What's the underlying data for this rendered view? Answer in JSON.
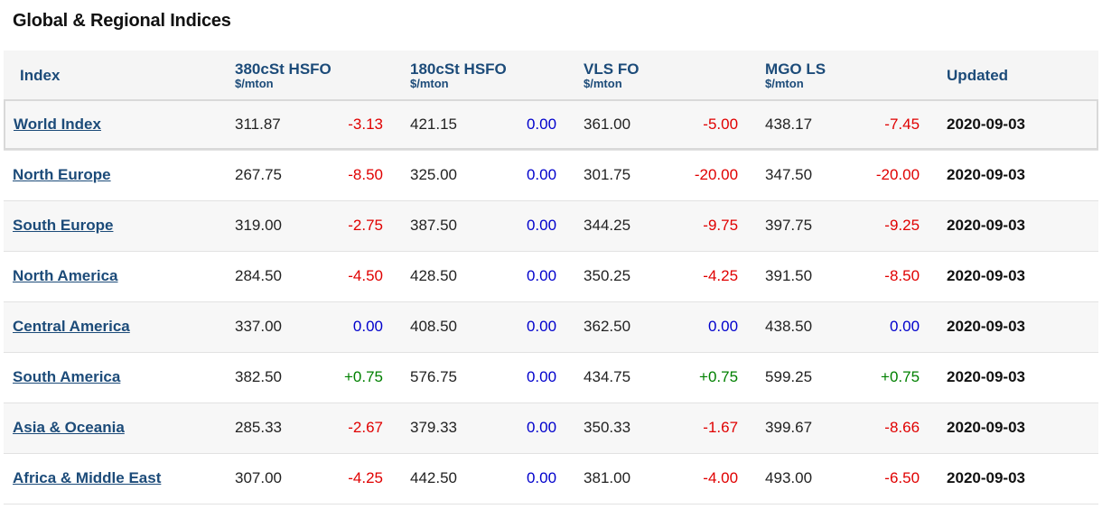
{
  "title": "Global & Regional Indices",
  "columns": {
    "index": "Index",
    "c1": {
      "name": "380cSt HSFO",
      "unit": "$/mton"
    },
    "c2": {
      "name": "180cSt HSFO",
      "unit": "$/mton"
    },
    "c3": {
      "name": "VLS FO",
      "unit": "$/mton"
    },
    "c4": {
      "name": "MGO LS",
      "unit": "$/mton"
    },
    "updated": "Updated"
  },
  "colors": {
    "negative": "#e00000",
    "zero": "#0000cc",
    "positive": "#008000",
    "header": "#1c4b79"
  },
  "rows": [
    {
      "name": "World Index",
      "p1": "311.87",
      "c1": "-3.13",
      "p2": "421.15",
      "c2": "0.00",
      "p3": "361.00",
      "c3": "-5.00",
      "p4": "438.17",
      "c4": "-7.45",
      "updated": "2020-09-03"
    },
    {
      "name": "North Europe",
      "p1": "267.75",
      "c1": "-8.50",
      "p2": "325.00",
      "c2": "0.00",
      "p3": "301.75",
      "c3": "-20.00",
      "p4": "347.50",
      "c4": "-20.00",
      "updated": "2020-09-03"
    },
    {
      "name": "South Europe",
      "p1": "319.00",
      "c1": "-2.75",
      "p2": "387.50",
      "c2": "0.00",
      "p3": "344.25",
      "c3": "-9.75",
      "p4": "397.75",
      "c4": "-9.25",
      "updated": "2020-09-03"
    },
    {
      "name": "North America",
      "p1": "284.50",
      "c1": "-4.50",
      "p2": "428.50",
      "c2": "0.00",
      "p3": "350.25",
      "c3": "-4.25",
      "p4": "391.50",
      "c4": "-8.50",
      "updated": "2020-09-03"
    },
    {
      "name": "Central America",
      "p1": "337.00",
      "c1": "0.00",
      "p2": "408.50",
      "c2": "0.00",
      "p3": "362.50",
      "c3": "0.00",
      "p4": "438.50",
      "c4": "0.00",
      "updated": "2020-09-03"
    },
    {
      "name": "South America",
      "p1": "382.50",
      "c1": "+0.75",
      "p2": "576.75",
      "c2": "0.00",
      "p3": "434.75",
      "c3": "+0.75",
      "p4": "599.25",
      "c4": "+0.75",
      "updated": "2020-09-03"
    },
    {
      "name": "Asia & Oceania",
      "p1": "285.33",
      "c1": "-2.67",
      "p2": "379.33",
      "c2": "0.00",
      "p3": "350.33",
      "c3": "-1.67",
      "p4": "399.67",
      "c4": "-8.66",
      "updated": "2020-09-03"
    },
    {
      "name": "Africa & Middle East",
      "p1": "307.00",
      "c1": "-4.25",
      "p2": "442.50",
      "c2": "0.00",
      "p3": "381.00",
      "c3": "-4.00",
      "p4": "493.00",
      "c4": "-6.50",
      "updated": "2020-09-03"
    }
  ]
}
